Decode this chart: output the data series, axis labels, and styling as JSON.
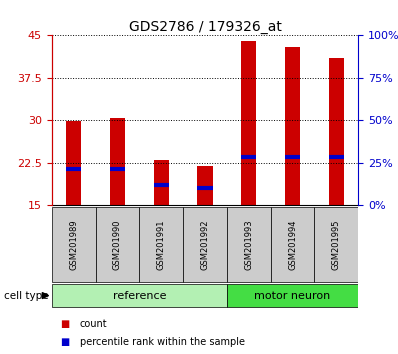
{
  "title": "GDS2786 / 179326_at",
  "samples": [
    "GSM201989",
    "GSM201990",
    "GSM201991",
    "GSM201992",
    "GSM201993",
    "GSM201994",
    "GSM201995"
  ],
  "bar_tops": [
    29.8,
    30.5,
    23.0,
    22.0,
    44.0,
    43.0,
    41.0
  ],
  "bar_bottom": 15.0,
  "percentile_values": [
    21.5,
    21.5,
    18.5,
    18.0,
    23.5,
    23.5,
    23.5
  ],
  "ylim_left": [
    15,
    45
  ],
  "ylim_right": [
    0,
    100
  ],
  "yticks_left": [
    15,
    22.5,
    30,
    37.5,
    45
  ],
  "ytick_labels_left": [
    "15",
    "22.5",
    "30",
    "37.5",
    "45"
  ],
  "yticks_right": [
    0,
    25,
    50,
    75,
    100
  ],
  "ytick_labels_right": [
    "0%",
    "25%",
    "50%",
    "75%",
    "100%"
  ],
  "groups": [
    {
      "label": "reference",
      "start": 0,
      "end": 4,
      "color": "#b3f0b3"
    },
    {
      "label": "motor neuron",
      "start": 4,
      "end": 7,
      "color": "#44dd44"
    }
  ],
  "cell_type_label": "cell type",
  "bar_color": "#cc0000",
  "bar_width": 0.35,
  "percentile_color": "#0000cc",
  "bg_xtick": "#cccccc",
  "left_axis_color": "#cc0000",
  "right_axis_color": "#0000cc",
  "legend_items": [
    {
      "label": "count",
      "color": "#cc0000"
    },
    {
      "label": "percentile rank within the sample",
      "color": "#0000cc"
    }
  ],
  "title_fontsize": 10,
  "tick_fontsize": 8,
  "sample_fontsize": 6,
  "group_fontsize": 8
}
